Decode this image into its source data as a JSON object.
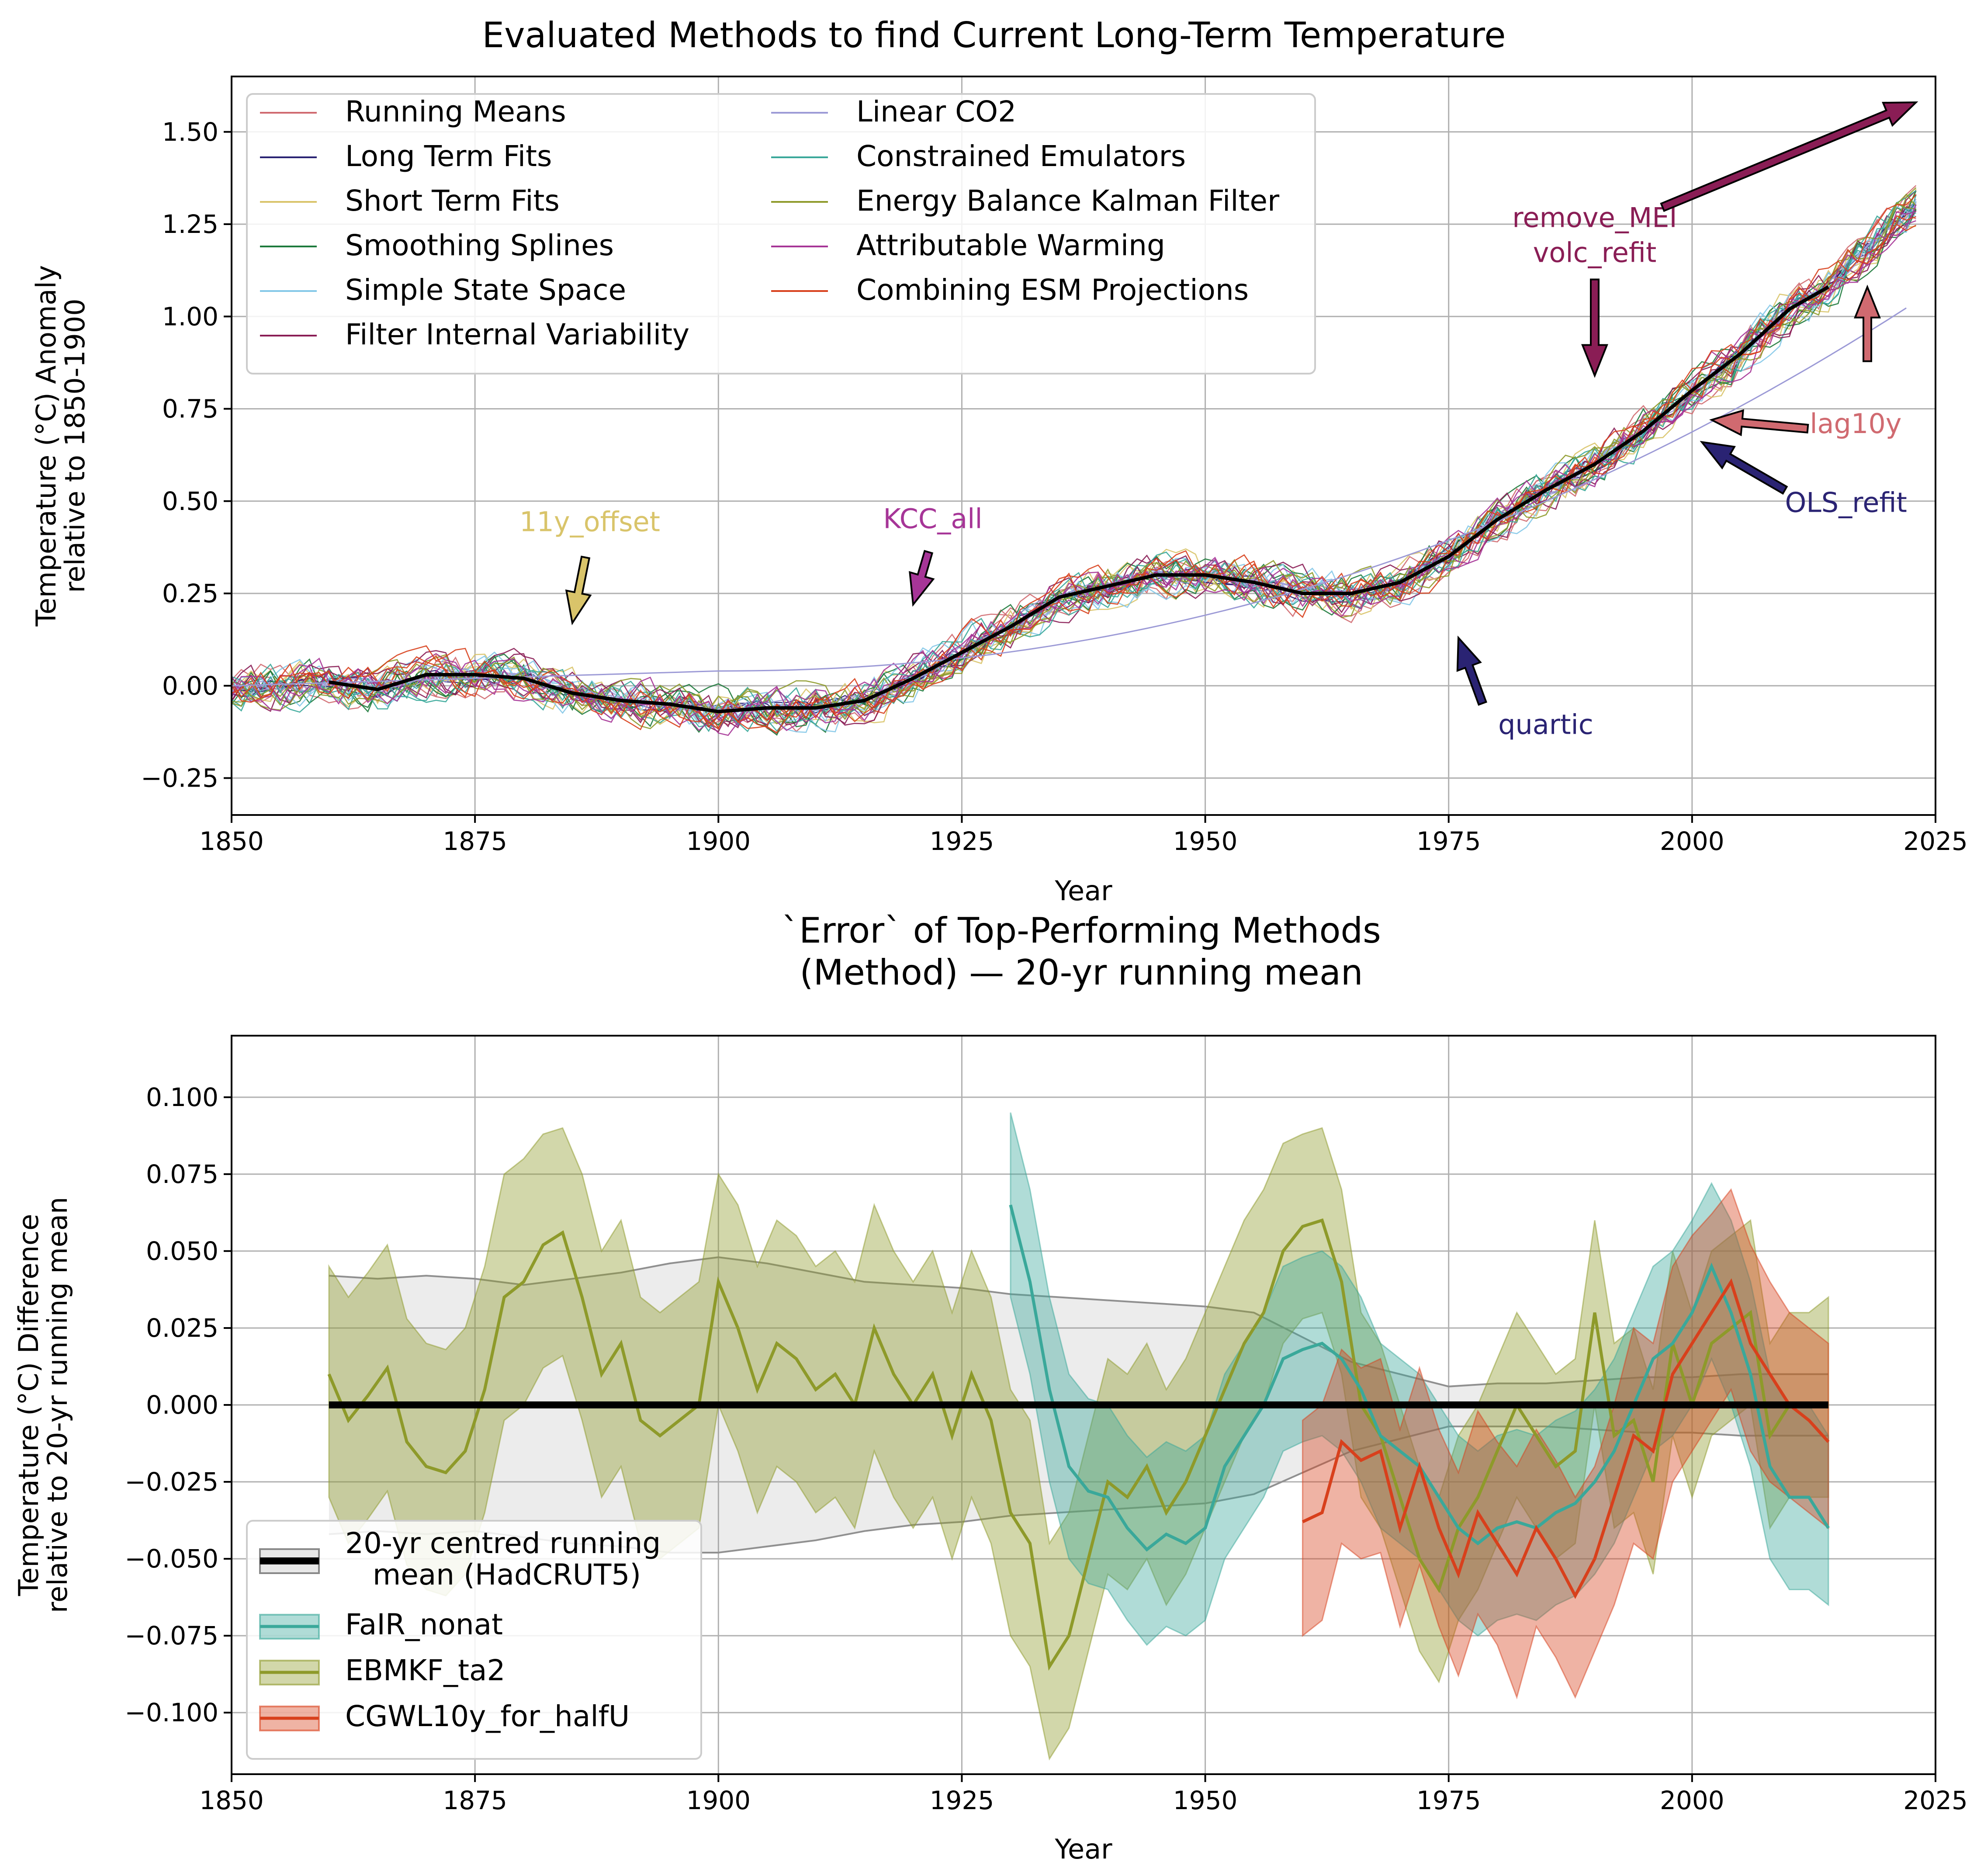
{
  "colors": {
    "running_means": "#d06a70",
    "long_term_fits": "#2a2373",
    "short_term_fits": "#d9c46a",
    "smoothing_splines": "#1e7a3c",
    "simple_state_space": "#84c8e8",
    "filter_internal_variability": "#8a1d55",
    "linear_co2": "#9c9ad6",
    "constrained_emulators": "#3aa89a",
    "energy_balance_kalman_filter": "#8e9a2a",
    "attributable_warming": "#a63597",
    "combining_esm_projections": "#d8401c",
    "fair_nonat": "#3aa89a",
    "ebmkf_ta2": "#8e9a2a",
    "cgwl10y_for_halfu": "#d8401c"
  },
  "chart_data": [
    {
      "type": "line",
      "title": "Evaluated Methods to find Current Long-Term Temperature",
      "xlabel": "Year",
      "ylabel": "Temperature (°C) Anomaly\nrelative to 1850-1900",
      "xlim": [
        1850,
        2025
      ],
      "ylim": [
        -0.35,
        1.65
      ],
      "xticks": [
        "1850",
        "1875",
        "1900",
        "1925",
        "1950",
        "1975",
        "2000",
        "2025"
      ],
      "yticks": [
        "−0.25",
        "0.00",
        "0.25",
        "0.50",
        "0.75",
        "1.00",
        "1.25",
        "1.50"
      ],
      "grid": true,
      "legend_position": "upper-left, two columns",
      "legend": [
        "Running Means",
        "Long Term Fits",
        "Short Term Fits",
        "Smoothing Splines",
        "Simple State Space",
        "Filter Internal Variability",
        "Linear CO2",
        "Constrained Emulators",
        "Energy Balance Kalman Filter",
        "Attributable Warming",
        "Combining ESM Projections"
      ],
      "reference_line": {
        "color": "#000000",
        "x": [
          1860,
          1865,
          1870,
          1875,
          1880,
          1885,
          1890,
          1895,
          1900,
          1905,
          1910,
          1915,
          1920,
          1925,
          1930,
          1935,
          1940,
          1945,
          1950,
          1955,
          1960,
          1965,
          1970,
          1975,
          1980,
          1985,
          1990,
          1995,
          2000,
          2005,
          2010,
          2014
        ],
        "y": [
          0.01,
          -0.01,
          0.03,
          0.03,
          0.02,
          -0.02,
          -0.04,
          -0.05,
          -0.07,
          -0.06,
          -0.06,
          -0.04,
          0.02,
          0.09,
          0.16,
          0.24,
          0.27,
          0.3,
          0.3,
          0.28,
          0.25,
          0.25,
          0.28,
          0.35,
          0.45,
          0.53,
          0.6,
          0.69,
          0.8,
          0.9,
          1.02,
          1.08
        ]
      },
      "annotations": [
        {
          "text": "11y_offset",
          "color": "#d9c46a",
          "x": 1885,
          "y": 0.17
        },
        {
          "text": "KCC_all",
          "color": "#a63597",
          "x": 1920,
          "y": 0.22
        },
        {
          "text": "quartic",
          "color": "#2a2373",
          "x": 1976,
          "y": 0.13
        },
        {
          "text": "remove_MEI\nvolc_refit",
          "color": "#8a1d55",
          "x": 1990,
          "y": 0.84
        },
        {
          "text": "lag10y",
          "color": "#d06a70",
          "x": 2002,
          "y": 0.72
        },
        {
          "text": "OLS_refit",
          "color": "#2a2373",
          "x": 2001,
          "y": 0.66
        },
        {
          "text": "",
          "color": "#8a1d55",
          "x": 2023,
          "y": 1.58
        },
        {
          "text": "",
          "color": "#d06a70",
          "x": 2018,
          "y": 1.08
        }
      ]
    },
    {
      "type": "line",
      "title": "`Error` of Top-Performing Methods\n(Method) — 20-yr running mean",
      "xlabel": "Year",
      "ylabel": "Temperature (°C) Difference\nrelative to 20-yr running mean",
      "xlim": [
        1850,
        2025
      ],
      "ylim": [
        -0.12,
        0.12
      ],
      "xticks": [
        "1850",
        "1875",
        "1900",
        "1925",
        "1950",
        "1975",
        "2000",
        "2025"
      ],
      "yticks": [
        "−0.100",
        "−0.075",
        "−0.050",
        "−0.025",
        "0.000",
        "0.025",
        "0.050",
        "0.075",
        "0.100"
      ],
      "grid": true,
      "legend_position": "lower-left",
      "legend": [
        "20-yr centred running\n   mean (HadCRUT5)",
        "FaIR_nonat",
        "EBMKF_ta2",
        "CGWL10y_for_halfU"
      ],
      "reference_band": {
        "x": [
          1860,
          1865,
          1870,
          1875,
          1880,
          1885,
          1890,
          1895,
          1900,
          1905,
          1910,
          1915,
          1920,
          1925,
          1930,
          1935,
          1940,
          1945,
          1950,
          1955,
          1960,
          1965,
          1970,
          1975,
          1980,
          1985,
          1990,
          1995,
          2000,
          2005,
          2010,
          2014
        ],
        "upper": [
          0.042,
          0.041,
          0.042,
          0.041,
          0.039,
          0.041,
          0.043,
          0.046,
          0.048,
          0.046,
          0.043,
          0.04,
          0.039,
          0.038,
          0.036,
          0.035,
          0.034,
          0.033,
          0.032,
          0.03,
          0.022,
          0.014,
          0.01,
          0.006,
          0.007,
          0.007,
          0.008,
          0.009,
          0.009,
          0.01,
          0.01,
          0.01
        ],
        "lower": [
          -0.042,
          -0.041,
          -0.042,
          -0.041,
          -0.043,
          -0.045,
          -0.046,
          -0.048,
          -0.048,
          -0.046,
          -0.044,
          -0.041,
          -0.039,
          -0.038,
          -0.036,
          -0.035,
          -0.034,
          -0.033,
          -0.032,
          -0.029,
          -0.022,
          -0.015,
          -0.011,
          -0.007,
          -0.007,
          -0.007,
          -0.008,
          -0.009,
          -0.009,
          -0.01,
          -0.01,
          -0.01
        ]
      },
      "series": [
        {
          "name": "FaIR_nonat",
          "color": "#3aa89a",
          "x": [
            1930,
            1932,
            1934,
            1936,
            1938,
            1940,
            1942,
            1944,
            1946,
            1948,
            1950,
            1952,
            1954,
            1956,
            1958,
            1960,
            1962,
            1964,
            1966,
            1968,
            1970,
            1972,
            1974,
            1976,
            1978,
            1980,
            1982,
            1984,
            1986,
            1988,
            1990,
            1992,
            1994,
            1996,
            1998,
            2000,
            2002,
            2004,
            2006,
            2008,
            2010,
            2012,
            2014
          ],
          "y": [
            0.065,
            0.04,
            0.005,
            -0.02,
            -0.028,
            -0.03,
            -0.04,
            -0.047,
            -0.042,
            -0.045,
            -0.04,
            -0.02,
            -0.01,
            0.0,
            0.015,
            0.018,
            0.02,
            0.015,
            0.005,
            -0.01,
            -0.015,
            -0.02,
            -0.03,
            -0.04,
            -0.045,
            -0.04,
            -0.038,
            -0.04,
            -0.035,
            -0.032,
            -0.025,
            -0.015,
            0.0,
            0.015,
            0.02,
            0.03,
            0.045,
            0.03,
            0.01,
            -0.02,
            -0.03,
            -0.03,
            -0.04
          ],
          "lower": [
            0.035,
            0.01,
            -0.025,
            -0.05,
            -0.058,
            -0.06,
            -0.07,
            -0.078,
            -0.072,
            -0.075,
            -0.07,
            -0.05,
            -0.04,
            -0.03,
            -0.015,
            -0.012,
            -0.01,
            -0.015,
            -0.025,
            -0.04,
            -0.045,
            -0.05,
            -0.06,
            -0.07,
            -0.075,
            -0.07,
            -0.068,
            -0.07,
            -0.065,
            -0.062,
            -0.055,
            -0.045,
            -0.03,
            -0.015,
            -0.01,
            0.0,
            0.015,
            0.0,
            -0.02,
            -0.05,
            -0.06,
            -0.06,
            -0.065
          ],
          "upper": [
            0.095,
            0.07,
            0.035,
            0.01,
            0.002,
            0.0,
            -0.01,
            -0.017,
            -0.012,
            -0.015,
            -0.01,
            0.01,
            0.02,
            0.03,
            0.045,
            0.048,
            0.05,
            0.045,
            0.035,
            0.02,
            0.015,
            0.01,
            0.0,
            -0.01,
            -0.015,
            -0.01,
            -0.008,
            -0.01,
            -0.005,
            -0.002,
            0.005,
            0.015,
            0.03,
            0.045,
            0.05,
            0.06,
            0.072,
            0.06,
            0.04,
            0.01,
            0.0,
            0.0,
            -0.01
          ]
        },
        {
          "name": "EBMKF_ta2",
          "color": "#8e9a2a",
          "x": [
            1860,
            1862,
            1864,
            1866,
            1868,
            1870,
            1872,
            1874,
            1876,
            1878,
            1880,
            1882,
            1884,
            1886,
            1888,
            1890,
            1892,
            1894,
            1896,
            1898,
            1900,
            1902,
            1904,
            1906,
            1908,
            1910,
            1912,
            1914,
            1916,
            1918,
            1920,
            1922,
            1924,
            1926,
            1928,
            1930,
            1932,
            1934,
            1936,
            1938,
            1940,
            1942,
            1944,
            1946,
            1948,
            1950,
            1952,
            1954,
            1956,
            1958,
            1960,
            1962,
            1964,
            1966,
            1968,
            1970,
            1972,
            1974,
            1976,
            1978,
            1980,
            1982,
            1984,
            1986,
            1988,
            1990,
            1992,
            1994,
            1996,
            1998,
            2000,
            2002,
            2004,
            2006,
            2008,
            2010,
            2012,
            2014
          ],
          "y": [
            0.01,
            -0.005,
            0.003,
            0.012,
            -0.012,
            -0.02,
            -0.022,
            -0.015,
            0.005,
            0.035,
            0.04,
            0.052,
            0.056,
            0.035,
            0.01,
            0.02,
            -0.005,
            -0.01,
            -0.005,
            0.0,
            0.04,
            0.025,
            0.005,
            0.02,
            0.015,
            0.005,
            0.01,
            0.0,
            0.025,
            0.01,
            0.0,
            0.01,
            -0.01,
            0.01,
            -0.005,
            -0.035,
            -0.045,
            -0.085,
            -0.075,
            -0.05,
            -0.025,
            -0.03,
            -0.02,
            -0.035,
            -0.025,
            -0.01,
            0.005,
            0.02,
            0.03,
            0.05,
            0.058,
            0.06,
            0.04,
            0.0,
            -0.01,
            -0.03,
            -0.05,
            -0.06,
            -0.04,
            -0.03,
            -0.015,
            0.0,
            -0.01,
            -0.02,
            -0.015,
            0.03,
            -0.01,
            -0.005,
            -0.025,
            0.02,
            0.0,
            0.02,
            0.025,
            0.03,
            -0.01,
            0.0,
            0.0,
            0.0
          ],
          "lower": [
            -0.03,
            -0.045,
            -0.037,
            -0.028,
            -0.052,
            -0.06,
            -0.062,
            -0.055,
            -0.035,
            -0.005,
            0.0,
            0.012,
            0.016,
            -0.005,
            -0.03,
            -0.02,
            -0.045,
            -0.05,
            -0.045,
            -0.04,
            0.0,
            -0.015,
            -0.035,
            -0.02,
            -0.025,
            -0.035,
            -0.03,
            -0.04,
            -0.015,
            -0.03,
            -0.04,
            -0.03,
            -0.05,
            -0.03,
            -0.045,
            -0.075,
            -0.085,
            -0.115,
            -0.105,
            -0.08,
            -0.055,
            -0.06,
            -0.05,
            -0.065,
            -0.055,
            -0.04,
            -0.025,
            -0.01,
            0.0,
            0.02,
            0.028,
            0.03,
            0.01,
            -0.03,
            -0.04,
            -0.06,
            -0.08,
            -0.09,
            -0.07,
            -0.06,
            -0.045,
            -0.03,
            -0.04,
            -0.05,
            -0.045,
            0.0,
            -0.04,
            -0.035,
            -0.055,
            -0.01,
            -0.03,
            -0.01,
            -0.005,
            0.0,
            -0.04,
            -0.03,
            -0.03,
            -0.03
          ],
          "upper": [
            0.045,
            0.035,
            0.043,
            0.052,
            0.028,
            0.02,
            0.018,
            0.025,
            0.045,
            0.075,
            0.08,
            0.088,
            0.09,
            0.075,
            0.05,
            0.06,
            0.035,
            0.03,
            0.035,
            0.04,
            0.075,
            0.065,
            0.045,
            0.06,
            0.055,
            0.045,
            0.05,
            0.04,
            0.065,
            0.05,
            0.04,
            0.05,
            0.03,
            0.05,
            0.035,
            0.005,
            -0.005,
            -0.045,
            -0.035,
            -0.01,
            0.015,
            0.01,
            0.02,
            0.005,
            0.015,
            0.03,
            0.045,
            0.06,
            0.07,
            0.085,
            0.088,
            0.09,
            0.07,
            0.03,
            0.02,
            0.0,
            -0.02,
            -0.03,
            -0.01,
            0.0,
            0.015,
            0.03,
            0.02,
            0.01,
            0.015,
            0.06,
            0.02,
            0.025,
            0.005,
            0.05,
            0.03,
            0.05,
            0.055,
            0.06,
            0.02,
            0.03,
            0.03,
            0.035
          ]
        },
        {
          "name": "CGWL10y_for_halfU",
          "color": "#d8401c",
          "x": [
            1960,
            1962,
            1964,
            1966,
            1968,
            1970,
            1972,
            1974,
            1976,
            1978,
            1980,
            1982,
            1984,
            1986,
            1988,
            1990,
            1992,
            1994,
            1996,
            1998,
            2000,
            2002,
            2004,
            2006,
            2008,
            2010,
            2012,
            2014
          ],
          "y": [
            -0.038,
            -0.035,
            -0.012,
            -0.018,
            -0.015,
            -0.04,
            -0.02,
            -0.04,
            -0.055,
            -0.035,
            -0.045,
            -0.055,
            -0.04,
            -0.05,
            -0.062,
            -0.05,
            -0.03,
            -0.01,
            -0.015,
            0.01,
            0.02,
            0.03,
            0.04,
            0.02,
            0.01,
            0.0,
            -0.005,
            -0.012
          ],
          "lower": [
            -0.075,
            -0.07,
            -0.045,
            -0.05,
            -0.048,
            -0.072,
            -0.052,
            -0.072,
            -0.088,
            -0.068,
            -0.078,
            -0.095,
            -0.072,
            -0.082,
            -0.095,
            -0.08,
            -0.065,
            -0.045,
            -0.05,
            -0.025,
            -0.015,
            -0.005,
            0.005,
            -0.015,
            -0.025,
            -0.03,
            -0.035,
            -0.04
          ],
          "upper": [
            -0.005,
            0.0,
            0.018,
            0.012,
            0.015,
            -0.008,
            0.012,
            -0.008,
            -0.022,
            -0.002,
            -0.012,
            -0.02,
            -0.008,
            -0.018,
            -0.03,
            -0.02,
            0.0,
            0.025,
            0.02,
            0.045,
            0.055,
            0.062,
            0.07,
            0.052,
            0.04,
            0.03,
            0.025,
            0.02
          ]
        }
      ]
    }
  ]
}
